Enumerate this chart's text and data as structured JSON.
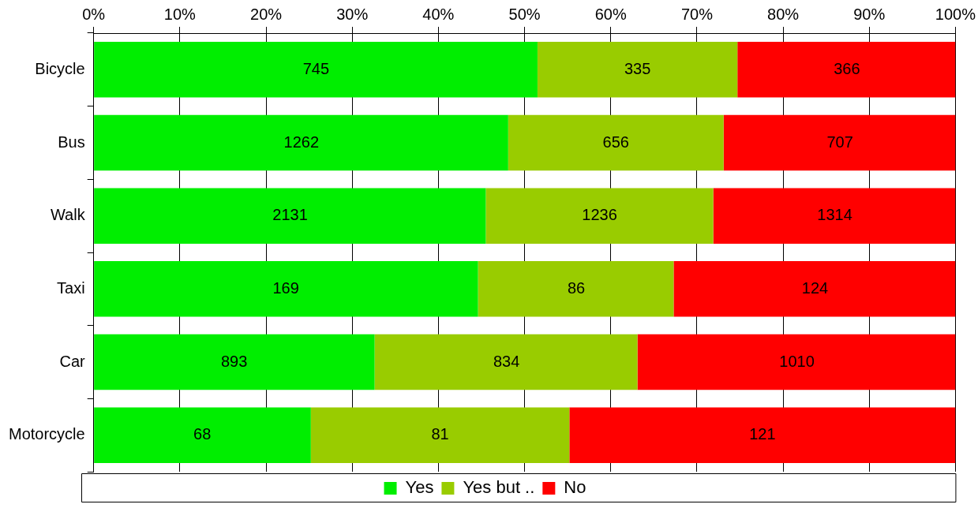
{
  "chart_data": {
    "type": "bar",
    "orientation": "horizontal",
    "stacked": true,
    "categories": [
      "Bicycle",
      "Bus",
      "Walk",
      "Taxi",
      "Car",
      "Motorcycle"
    ],
    "series": [
      {
        "name": "Yes",
        "color": "#00ee00",
        "values": [
          51.5,
          48.1,
          45.5,
          44.6,
          32.6,
          25.2
        ]
      },
      {
        "name": "Yes but ..",
        "color": "#99cc00",
        "values": [
          23.2,
          25.0,
          26.4,
          22.7,
          30.5,
          30.0
        ]
      },
      {
        "name": "No",
        "color": "#ff0000",
        "values": [
          25.3,
          26.9,
          28.1,
          32.7,
          36.9,
          44.8
        ]
      }
    ],
    "annotations": [
      {
        "text": "745",
        "x": 25.8,
        "y": "Bicycle"
      },
      {
        "text": "335",
        "x": 63.1,
        "y": "Bicycle"
      },
      {
        "text": "366",
        "x": 87.4,
        "y": "Bicycle"
      },
      {
        "text": "1262",
        "x": 24.1,
        "y": "Bus"
      },
      {
        "text": "656",
        "x": 60.6,
        "y": "Bus"
      },
      {
        "text": "707",
        "x": 86.6,
        "y": "Bus"
      },
      {
        "text": "2131",
        "x": 22.8,
        "y": "Walk"
      },
      {
        "text": "1236",
        "x": 58.7,
        "y": "Walk"
      },
      {
        "text": "1314",
        "x": 86.0,
        "y": "Walk"
      },
      {
        "text": "169",
        "x": 22.3,
        "y": "Taxi"
      },
      {
        "text": "86",
        "x": 56.0,
        "y": "Taxi"
      },
      {
        "text": "124",
        "x": 83.7,
        "y": "Taxi"
      },
      {
        "text": "893",
        "x": 16.3,
        "y": "Car"
      },
      {
        "text": "834",
        "x": 47.9,
        "y": "Car"
      },
      {
        "text": "1010",
        "x": 81.6,
        "y": "Car"
      },
      {
        "text": "68",
        "x": 12.6,
        "y": "Motorcycle"
      },
      {
        "text": "81",
        "x": 40.2,
        "y": "Motorcycle"
      },
      {
        "text": "121",
        "x": 77.6,
        "y": "Motorcycle"
      }
    ],
    "xlim": [
      0,
      100
    ],
    "xticks": [
      {
        "value": 0,
        "label": "0%"
      },
      {
        "value": 10,
        "label": "10%"
      },
      {
        "value": 20,
        "label": "20%"
      },
      {
        "value": 30,
        "label": "30%"
      },
      {
        "value": 40,
        "label": "40%"
      },
      {
        "value": 50,
        "label": "50%"
      },
      {
        "value": 60,
        "label": "60%"
      },
      {
        "value": 70,
        "label": "70%"
      },
      {
        "value": 80,
        "label": "80%"
      },
      {
        "value": 90,
        "label": "90%"
      },
      {
        "value": 100,
        "label": "100%"
      }
    ],
    "grid": "x",
    "legend": "bottom"
  }
}
